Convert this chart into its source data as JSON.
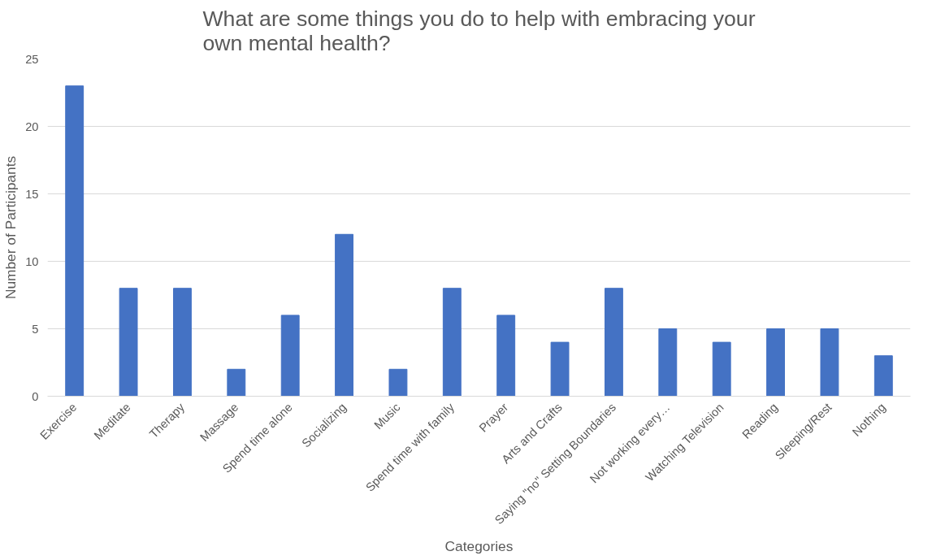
{
  "chart_data": {
    "type": "bar",
    "title": "What are some things you do to help with embracing your own mental health?",
    "xlabel": "Categories",
    "ylabel": "Number of Participants",
    "categories": [
      "Exercise",
      "Meditate",
      "Therapy",
      "Massage",
      "Spend time alone",
      "Socializing",
      "Music",
      "Spend time with family",
      "Prayer",
      "Arts and Crafts",
      "Saying \"no\" Setting Boundaries",
      "Not working every…",
      "Watching Television",
      "Reading",
      "Sleeping/Rest",
      "Nothing"
    ],
    "values": [
      23,
      8,
      8,
      2,
      6,
      12,
      2,
      8,
      6,
      4,
      8,
      5,
      4,
      5,
      5,
      3
    ],
    "color": "#4472c4",
    "ylim": [
      0,
      25
    ],
    "yticks": [
      0,
      5,
      10,
      15,
      20,
      25
    ],
    "grid": "y"
  }
}
